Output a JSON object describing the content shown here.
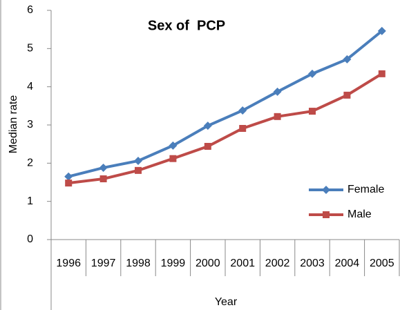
{
  "chart_data": {
    "type": "line",
    "title": "Sex of  PCP",
    "x_label": "Year",
    "y_label": "Median rate",
    "categories": [
      "1996",
      "1997",
      "1998",
      "1999",
      "2000",
      "2001",
      "2002",
      "2003",
      "2004",
      "2005"
    ],
    "series": [
      {
        "name": "Female",
        "color": "#4a7ebb",
        "marker": "diamond",
        "values": [
          1.65,
          1.88,
          2.06,
          2.46,
          2.98,
          3.38,
          3.87,
          4.34,
          4.72,
          5.46
        ]
      },
      {
        "name": "Male",
        "color": "#be4b48",
        "marker": "square",
        "values": [
          1.48,
          1.59,
          1.81,
          2.12,
          2.44,
          2.91,
          3.22,
          3.36,
          3.78,
          4.34
        ]
      }
    ],
    "ylim": [
      0,
      6
    ],
    "yticks": [
      0,
      1,
      2,
      3,
      4,
      5,
      6
    ],
    "legend": "right"
  }
}
